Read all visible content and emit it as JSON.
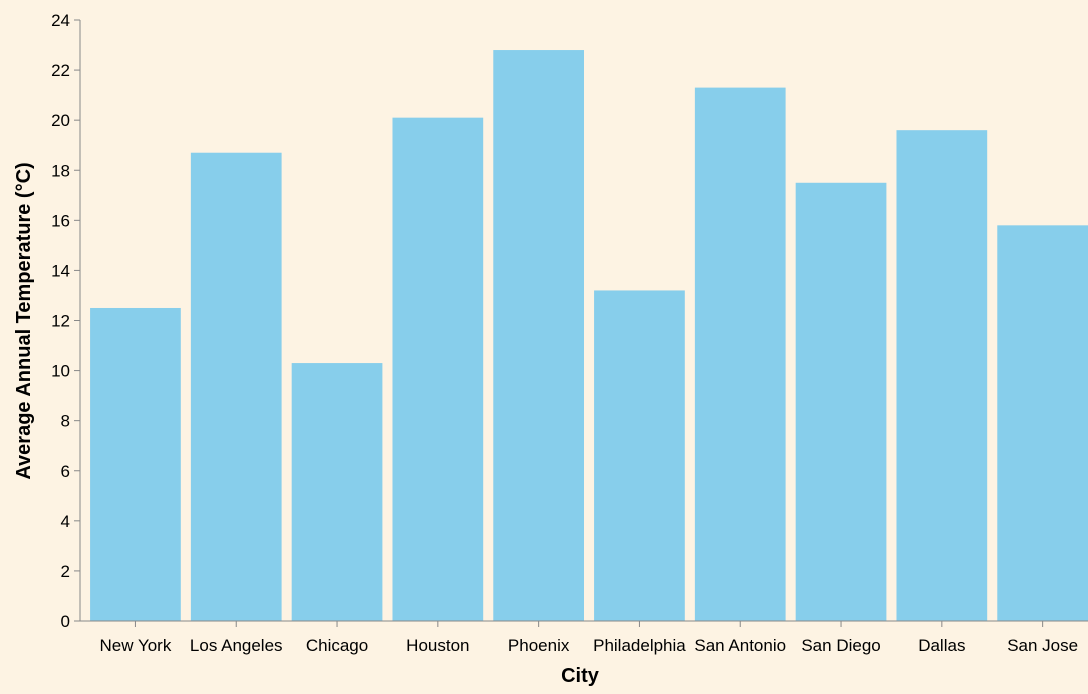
{
  "chart_data": {
    "type": "bar",
    "title": "",
    "xlabel": "City",
    "ylabel": "Average Annual Temperature (°C)",
    "categories": [
      "New York",
      "Los Angeles",
      "Chicago",
      "Houston",
      "Phoenix",
      "Philadelphia",
      "San Antonio",
      "San Diego",
      "Dallas",
      "San Jose"
    ],
    "values": [
      12.5,
      18.7,
      10.3,
      20.1,
      22.8,
      13.2,
      21.3,
      17.5,
      19.6,
      15.8
    ],
    "ylim": [
      0,
      24
    ],
    "yticks": [
      0,
      2,
      4,
      6,
      8,
      10,
      12,
      14,
      16,
      18,
      20,
      22,
      24
    ],
    "grid": false,
    "colors": {
      "bar": "#87ceeb",
      "background": "#fdf3e3",
      "axis": "#888888"
    }
  }
}
